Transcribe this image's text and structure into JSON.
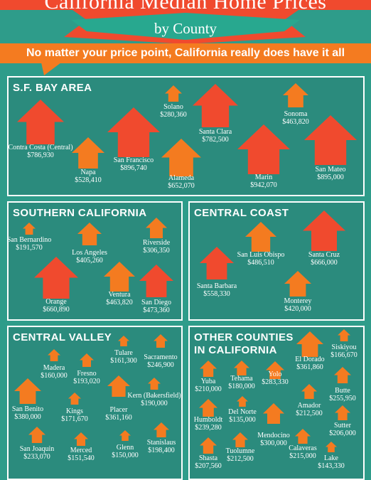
{
  "header": {
    "title": "California Median Home Prices",
    "subtitle": "by County",
    "tagline": "No matter your price point, California really does have it all"
  },
  "colors": {
    "background": "#2e9c8a",
    "panel": "#2b8b7d",
    "house_red": "#f04a2e",
    "house_orange": "#f47b20",
    "banner": "#f47b20"
  },
  "regions": [
    {
      "title": "S.F. BAY AREA",
      "counties": [
        {
          "name": "Contra Costa (Central)",
          "price": "$786,930",
          "value": 786930,
          "color": "red"
        },
        {
          "name": "Napa",
          "price": "$528,410",
          "value": 528410,
          "color": "orange"
        },
        {
          "name": "San Francisco",
          "price": "$896,740",
          "value": 896740,
          "color": "red"
        },
        {
          "name": "Solano",
          "price": "$280,360",
          "value": 280360,
          "color": "orange"
        },
        {
          "name": "Alameda",
          "price": "$652,070",
          "value": 652070,
          "color": "orange"
        },
        {
          "name": "Santa Clara",
          "price": "$782,500",
          "value": 782500,
          "color": "red"
        },
        {
          "name": "Marin",
          "price": "$942,070",
          "value": 942070,
          "color": "red"
        },
        {
          "name": "Sonoma",
          "price": "$463,820",
          "value": 463820,
          "color": "orange"
        },
        {
          "name": "San Mateo",
          "price": "$895,000",
          "value": 895000,
          "color": "red"
        }
      ]
    },
    {
      "title": "SOUTHERN CALIFORNIA",
      "counties": [
        {
          "name": "San Bernardino",
          "price": "$191,570",
          "value": 191570,
          "color": "orange"
        },
        {
          "name": "Los Angeles",
          "price": "$405,260",
          "value": 405260,
          "color": "orange"
        },
        {
          "name": "Riverside",
          "price": "$306,350",
          "value": 306350,
          "color": "orange"
        },
        {
          "name": "Orange",
          "price": "$660,890",
          "value": 660890,
          "color": "red"
        },
        {
          "name": "Ventura",
          "price": "$463,820",
          "value": 463820,
          "color": "orange"
        },
        {
          "name": "San Diego",
          "price": "$473,360",
          "value": 473360,
          "color": "red"
        }
      ]
    },
    {
      "title": "CENTRAL COAST",
      "counties": [
        {
          "name": "San Luis Obispo",
          "price": "$486,510",
          "value": 486510,
          "color": "orange"
        },
        {
          "name": "Santa Cruz",
          "price": "$666,000",
          "value": 666000,
          "color": "red"
        },
        {
          "name": "Santa Barbara",
          "price": "$558,330",
          "value": 558330,
          "color": "red"
        },
        {
          "name": "Monterey",
          "price": "$420,000",
          "value": 420000,
          "color": "orange"
        }
      ]
    },
    {
      "title": "CENTRAL VALLEY",
      "counties": [
        {
          "name": "Madera",
          "price": "$160,000",
          "value": 160000,
          "color": "orange"
        },
        {
          "name": "Fresno",
          "price": "$193,020",
          "value": 193020,
          "color": "orange"
        },
        {
          "name": "Tulare",
          "price": "$161,300",
          "value": 161300,
          "color": "orange"
        },
        {
          "name": "Sacramento",
          "price": "$246,900",
          "value": 246900,
          "color": "orange"
        },
        {
          "name": "San Benito",
          "price": "$380,000",
          "value": 380000,
          "color": "orange"
        },
        {
          "name": "Kings",
          "price": "$171,670",
          "value": 171670,
          "color": "orange"
        },
        {
          "name": "Placer",
          "price": "$361,160",
          "value": 361160,
          "color": "orange"
        },
        {
          "name": "Kern (Bakersfield)",
          "price": "$190,000",
          "value": 190000,
          "color": "orange"
        },
        {
          "name": "San Joaquin",
          "price": "$233,070",
          "value": 233070,
          "color": "orange"
        },
        {
          "name": "Merced",
          "price": "$151,540",
          "value": 151540,
          "color": "orange"
        },
        {
          "name": "Glenn",
          "price": "$150,000",
          "value": 150000,
          "color": "orange"
        },
        {
          "name": "Stanislaus",
          "price": "$198,400",
          "value": 198400,
          "color": "orange"
        }
      ]
    },
    {
      "title_line1": "OTHER COUNTIES",
      "title_line2": "IN CALIFORNIA",
      "counties": [
        {
          "name": "Yuba",
          "price": "$210,000",
          "value": 210000,
          "color": "orange"
        },
        {
          "name": "Tehama",
          "price": "$180,000",
          "value": 180000,
          "color": "orange"
        },
        {
          "name": "Yolo",
          "price": "$283,330",
          "value": 283330,
          "color": "orange"
        },
        {
          "name": "El Dorado",
          "price": "$361,860",
          "value": 361860,
          "color": "orange"
        },
        {
          "name": "Siskiyou",
          "price": "$166,670",
          "value": 166670,
          "color": "orange"
        },
        {
          "name": "Humboldt",
          "price": "$239,280",
          "value": 239280,
          "color": "orange"
        },
        {
          "name": "Del Norte",
          "price": "$135,000",
          "value": 135000,
          "color": "orange"
        },
        {
          "name": "Mendocino",
          "price": "$300,000",
          "value": 300000,
          "color": "orange"
        },
        {
          "name": "Amador",
          "price": "$212,500",
          "value": 212500,
          "color": "orange"
        },
        {
          "name": "Butte",
          "price": "$255,950",
          "value": 255950,
          "color": "orange"
        },
        {
          "name": "Sutter",
          "price": "$206,000",
          "value": 206000,
          "color": "orange"
        },
        {
          "name": "Shasta",
          "price": "$207,560",
          "value": 207560,
          "color": "orange"
        },
        {
          "name": "Tuolumne",
          "price": "$212,500",
          "value": 212500,
          "color": "orange"
        },
        {
          "name": "Calaveras",
          "price": "$215,000",
          "value": 215000,
          "color": "orange"
        },
        {
          "name": "Lake",
          "price": "$143,330",
          "value": 143330,
          "color": "orange"
        }
      ]
    }
  ]
}
